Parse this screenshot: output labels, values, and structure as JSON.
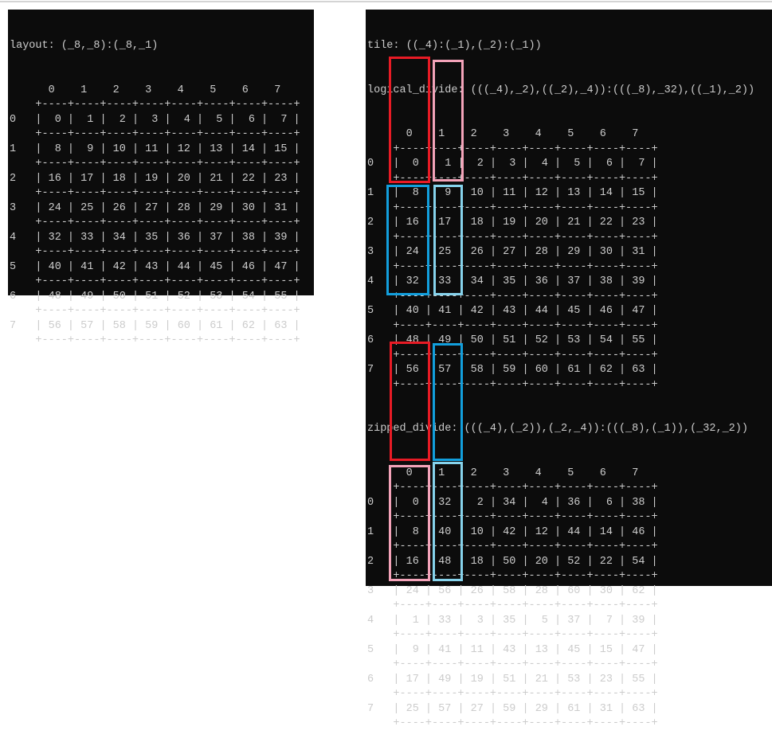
{
  "left": {
    "title": "layout: (_8,_8):(_8,_1)",
    "col_headers": [
      "0",
      "1",
      "2",
      "3",
      "4",
      "5",
      "6",
      "7"
    ],
    "row_headers": [
      "0",
      "1",
      "2",
      "3",
      "4",
      "5",
      "6",
      "7"
    ],
    "values": [
      [
        0,
        1,
        2,
        3,
        4,
        5,
        6,
        7
      ],
      [
        8,
        9,
        10,
        11,
        12,
        13,
        14,
        15
      ],
      [
        16,
        17,
        18,
        19,
        20,
        21,
        22,
        23
      ],
      [
        24,
        25,
        26,
        27,
        28,
        29,
        30,
        31
      ],
      [
        32,
        33,
        34,
        35,
        36,
        37,
        38,
        39
      ],
      [
        40,
        41,
        42,
        43,
        44,
        45,
        46,
        47
      ],
      [
        48,
        49,
        50,
        51,
        52,
        53,
        54,
        55
      ],
      [
        56,
        57,
        58,
        59,
        60,
        61,
        62,
        63
      ]
    ]
  },
  "right": {
    "tile": "tile: ((_4):(_1),(_2):(_1))",
    "logical": {
      "title": "logical_divide: (((_4),_2),((_2),_4)):(((_8),_32),((_1),_2))",
      "col_headers": [
        "0",
        "1",
        "2",
        "3",
        "4",
        "5",
        "6",
        "7"
      ],
      "row_headers": [
        "0",
        "1",
        "2",
        "3",
        "4",
        "5",
        "6",
        "7"
      ],
      "values": [
        [
          0,
          1,
          2,
          3,
          4,
          5,
          6,
          7
        ],
        [
          8,
          9,
          10,
          11,
          12,
          13,
          14,
          15
        ],
        [
          16,
          17,
          18,
          19,
          20,
          21,
          22,
          23
        ],
        [
          24,
          25,
          26,
          27,
          28,
          29,
          30,
          31
        ],
        [
          32,
          33,
          34,
          35,
          36,
          37,
          38,
          39
        ],
        [
          40,
          41,
          42,
          43,
          44,
          45,
          46,
          47
        ],
        [
          48,
          49,
          50,
          51,
          52,
          53,
          54,
          55
        ],
        [
          56,
          57,
          58,
          59,
          60,
          61,
          62,
          63
        ]
      ]
    },
    "zipped": {
      "title": "zipped_divide: (((_4),(_2)),(_2,_4)):(((_8),(_1)),(_32,_2))",
      "col_headers": [
        "0",
        "1",
        "2",
        "3",
        "4",
        "5",
        "6",
        "7"
      ],
      "row_headers": [
        "0",
        "1",
        "2",
        "3",
        "4",
        "5",
        "6",
        "7"
      ],
      "values": [
        [
          0,
          32,
          2,
          34,
          4,
          36,
          6,
          38
        ],
        [
          8,
          40,
          10,
          42,
          12,
          44,
          14,
          46
        ],
        [
          16,
          48,
          18,
          50,
          20,
          52,
          22,
          54
        ],
        [
          24,
          56,
          26,
          58,
          28,
          60,
          30,
          62
        ],
        [
          1,
          33,
          3,
          35,
          5,
          37,
          7,
          39
        ],
        [
          9,
          41,
          11,
          43,
          13,
          45,
          15,
          47
        ],
        [
          17,
          49,
          19,
          51,
          21,
          53,
          23,
          55
        ],
        [
          25,
          57,
          27,
          59,
          29,
          61,
          31,
          63
        ]
      ]
    }
  },
  "highlight_colors": {
    "red": "#e81b25",
    "pink": "#f4a3b9",
    "blue": "#129fdd",
    "light_blue": "#86d3ec"
  }
}
